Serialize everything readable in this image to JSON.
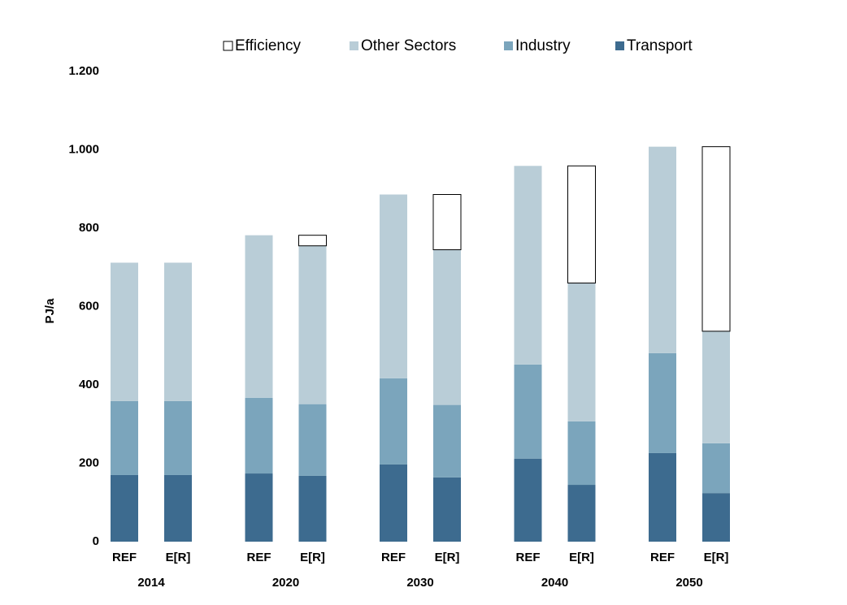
{
  "chart_data": {
    "type": "stacked-bar",
    "y_label": "PJ/a",
    "categories": [
      "REF",
      "E[R]",
      "REF",
      "E[R]",
      "REF",
      "E[R]",
      "REF",
      "E[R]",
      "REF",
      "E[R]"
    ],
    "groups": [
      "2014",
      "2020",
      "2030",
      "2040",
      "2050"
    ],
    "series": [
      {
        "name": "Transport",
        "color": "#3d6b8f",
        "values": [
          170,
          170,
          174,
          168,
          197,
          164,
          212,
          145,
          226,
          124
        ]
      },
      {
        "name": "Industry",
        "color": "#7ba5bc",
        "values": [
          189,
          189,
          193,
          183,
          220,
          185,
          240,
          162,
          255,
          127
        ]
      },
      {
        "name": "Other Sectors",
        "color": "#b9cdd7",
        "values": [
          353,
          353,
          415,
          404,
          469,
          396,
          507,
          353,
          527,
          286
        ]
      },
      {
        "name": "Efficiency",
        "color": "#ffffff",
        "values": [
          null,
          0,
          null,
          27,
          null,
          141,
          null,
          299,
          null,
          471
        ]
      }
    ],
    "ylim": [
      0,
      1200
    ],
    "yticks": [
      0,
      200,
      400,
      600,
      800,
      {
        "value": 1000,
        "label": "1.000"
      },
      {
        "value": 1200,
        "label": "1.200"
      }
    ],
    "grid": false
  }
}
